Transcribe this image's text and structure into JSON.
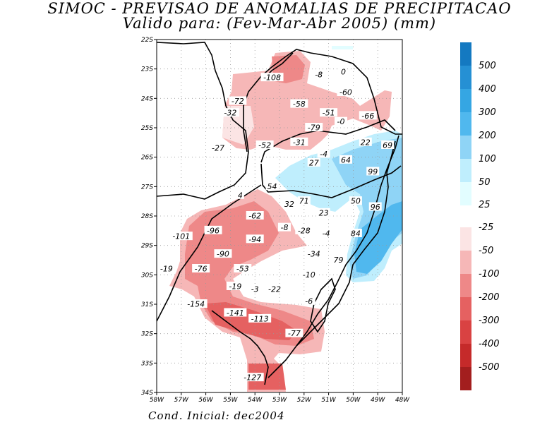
{
  "title_line1": "SIMOC - PREVISAO DE ANOMALIAS DE PRECIPITACAO",
  "title_line2": "Valido para: (Fev-Mar-Abr 2005) (mm)",
  "footer": "Cond. Inicial: dec2004",
  "map": {
    "lat_labels": [
      "22S",
      "23S",
      "24S",
      "25S",
      "26S",
      "27S",
      "28S",
      "29S",
      "30S",
      "31S",
      "32S",
      "33S",
      "34S"
    ],
    "lon_labels": [
      "58W",
      "57W",
      "56W",
      "55W",
      "54W",
      "53W",
      "52W",
      "51W",
      "50W",
      "49W",
      "48W"
    ]
  },
  "legend": {
    "labels": [
      "500",
      "400",
      "300",
      "200",
      "100",
      "50",
      "25",
      "-25",
      "-50",
      "-100",
      "-200",
      "-300",
      "-400",
      "-500"
    ],
    "colors": {
      "pos": [
        "#1479c1",
        "#2590d4",
        "#35a6e3",
        "#50b8ee",
        "#8fd4f6",
        "#bfeefd",
        "#e2fdff"
      ],
      "neg": [
        "#fbe4e4",
        "#f6b7b7",
        "#ee8888",
        "#e56161",
        "#d94242",
        "#c52a2a",
        "#a31e1e"
      ]
    }
  },
  "values": [
    {
      "text": "-108",
      "lon": -53.3,
      "lat": -23.3,
      "c": "neg"
    },
    {
      "text": "-8",
      "lon": -51.4,
      "lat": -23.2,
      "c": "pos"
    },
    {
      "text": "0",
      "lon": -50.4,
      "lat": -23.1,
      "c": "pos"
    },
    {
      "text": "-60",
      "lon": -50.3,
      "lat": -23.8,
      "c": "pos"
    },
    {
      "text": "-72",
      "lon": -54.7,
      "lat": -24.1,
      "c": "neg"
    },
    {
      "text": "-58",
      "lon": -52.2,
      "lat": -24.2,
      "c": "neg"
    },
    {
      "text": "-32",
      "lon": -55.0,
      "lat": -24.5,
      "c": "neg"
    },
    {
      "text": "-51",
      "lon": -51.0,
      "lat": -24.5,
      "c": "neg"
    },
    {
      "text": "-66",
      "lon": -49.4,
      "lat": -24.6,
      "c": "neg"
    },
    {
      "text": "-0",
      "lon": -50.5,
      "lat": -24.8,
      "c": "neg"
    },
    {
      "text": "-79",
      "lon": -51.6,
      "lat": -25.0,
      "c": "neg"
    },
    {
      "text": "22",
      "lon": -49.5,
      "lat": -25.5,
      "c": "pos"
    },
    {
      "text": "69",
      "lon": -48.6,
      "lat": -25.6,
      "c": "pos"
    },
    {
      "text": "-27",
      "lon": -55.5,
      "lat": -25.7,
      "c": "neg"
    },
    {
      "text": "-52",
      "lon": -53.6,
      "lat": -25.6,
      "c": "neg"
    },
    {
      "text": "-31",
      "lon": -52.2,
      "lat": -25.5,
      "c": "neg"
    },
    {
      "text": "-4",
      "lon": -51.2,
      "lat": -25.9,
      "c": "pos"
    },
    {
      "text": "64",
      "lon": -50.3,
      "lat": -26.1,
      "c": "pos"
    },
    {
      "text": "27",
      "lon": -51.6,
      "lat": -26.2,
      "c": "pos"
    },
    {
      "text": "99",
      "lon": -49.2,
      "lat": -26.5,
      "c": "pos"
    },
    {
      "text": "54",
      "lon": -53.3,
      "lat": -27.0,
      "c": "pos"
    },
    {
      "text": "4",
      "lon": -54.6,
      "lat": -27.3,
      "c": "neg"
    },
    {
      "text": "32",
      "lon": -52.6,
      "lat": -27.6,
      "c": "pos"
    },
    {
      "text": "71",
      "lon": -52.0,
      "lat": -27.5,
      "c": "pos"
    },
    {
      "text": "50",
      "lon": -49.9,
      "lat": -27.5,
      "c": "pos"
    },
    {
      "text": "96",
      "lon": -49.1,
      "lat": -27.7,
      "c": "pos"
    },
    {
      "text": "23",
      "lon": -51.2,
      "lat": -27.9,
      "c": "pos"
    },
    {
      "text": "-62",
      "lon": -54.0,
      "lat": -28.0,
      "c": "neg"
    },
    {
      "text": "-96",
      "lon": -55.7,
      "lat": -28.5,
      "c": "neg"
    },
    {
      "text": "-94",
      "lon": -54.0,
      "lat": -28.8,
      "c": "neg"
    },
    {
      "text": "-8",
      "lon": -52.8,
      "lat": -28.4,
      "c": "pos"
    },
    {
      "text": "-28",
      "lon": -52.0,
      "lat": -28.5,
      "c": "pos"
    },
    {
      "text": "-4",
      "lon": -51.1,
      "lat": -28.6,
      "c": "pos"
    },
    {
      "text": "84",
      "lon": -49.9,
      "lat": -28.6,
      "c": "pos"
    },
    {
      "text": "-101",
      "lon": -57.0,
      "lat": -28.7,
      "c": "neg"
    },
    {
      "text": "-90",
      "lon": -55.3,
      "lat": -29.3,
      "c": "neg"
    },
    {
      "text": "-34",
      "lon": -51.6,
      "lat": -29.3,
      "c": "pos"
    },
    {
      "text": "79",
      "lon": -50.6,
      "lat": -29.5,
      "c": "pos"
    },
    {
      "text": "-76",
      "lon": -56.2,
      "lat": -29.8,
      "c": "neg"
    },
    {
      "text": "-53",
      "lon": -54.5,
      "lat": -29.8,
      "c": "neg"
    },
    {
      "text": "-19",
      "lon": -57.6,
      "lat": -29.8,
      "c": "neg"
    },
    {
      "text": "-10",
      "lon": -51.8,
      "lat": -30.0,
      "c": "pos"
    },
    {
      "text": "-19",
      "lon": -54.8,
      "lat": -30.4,
      "c": "neg"
    },
    {
      "text": "-3",
      "lon": -54.0,
      "lat": -30.5,
      "c": "pos"
    },
    {
      "text": "-22",
      "lon": -53.2,
      "lat": -30.5,
      "c": "pos"
    },
    {
      "text": "-6",
      "lon": -51.8,
      "lat": -30.9,
      "c": "pos"
    },
    {
      "text": "-154",
      "lon": -56.4,
      "lat": -31.0,
      "c": "neg"
    },
    {
      "text": "-141",
      "lon": -54.8,
      "lat": -31.3,
      "c": "neg"
    },
    {
      "text": "-113",
      "lon": -53.8,
      "lat": -31.5,
      "c": "neg"
    },
    {
      "text": "-77",
      "lon": -52.4,
      "lat": -32.0,
      "c": "neg"
    },
    {
      "text": "-127",
      "lon": -54.1,
      "lat": -33.5,
      "c": "neg"
    }
  ]
}
